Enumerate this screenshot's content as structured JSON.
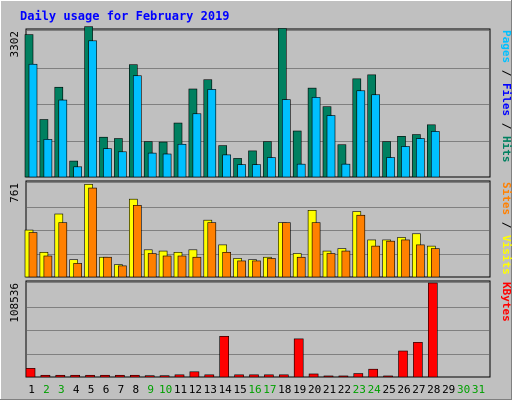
{
  "chart_data": {
    "type": "bar",
    "title": "Daily usage for February 2019",
    "categories": [
      "1",
      "2",
      "3",
      "4",
      "5",
      "6",
      "7",
      "8",
      "9",
      "10",
      "11",
      "12",
      "13",
      "14",
      "15",
      "16",
      "17",
      "18",
      "19",
      "20",
      "21",
      "22",
      "23",
      "24",
      "25",
      "26",
      "27",
      "28",
      "29",
      "30",
      "31"
    ],
    "weekend_days": [
      "2",
      "3",
      "9",
      "10",
      "16",
      "17",
      "23",
      "24",
      "30",
      "31"
    ],
    "panels": [
      {
        "name": "hits_files_pages",
        "ymax_label": "3302",
        "ylim": [
          0,
          3302
        ],
        "right_label": [
          {
            "text": "Pages",
            "color": "#00c0ff"
          },
          {
            "text": " / ",
            "color": "#000000"
          },
          {
            "text": "Files",
            "color": "#0000ff"
          },
          {
            "text": " / ",
            "color": "#000000"
          },
          {
            "text": "Hits",
            "color": "#008060"
          }
        ],
        "series": [
          {
            "name": "Hits",
            "color": "#008060",
            "values": [
              3220,
              1300,
              2030,
              360,
              3400,
              900,
              870,
              2540,
              800,
              790,
              1220,
              1990,
              2200,
              710,
              420,
              590,
              800,
              3360,
              1040,
              2010,
              1590,
              730,
              2220,
              2310,
              800,
              920,
              960,
              1180
            ]
          },
          {
            "name": "Files",
            "color": "#0000ff",
            "values": [
              2550,
              850,
              1740,
              230,
              3080,
              640,
              570,
              2290,
              540,
              520,
              740,
              1430,
              1980,
              500,
              280,
              280,
              440,
              1750,
              290,
              1800,
              1390,
              290,
              1950,
              1860,
              440,
              690,
              870,
              1030
            ]
          },
          {
            "name": "Pages",
            "color": "#00c0ff",
            "values": [
              2550,
              850,
              1740,
              230,
              3080,
              640,
              570,
              2290,
              540,
              520,
              740,
              1430,
              1980,
              500,
              280,
              280,
              440,
              1750,
              290,
              1800,
              1390,
              290,
              1950,
              1860,
              440,
              690,
              870,
              1030
            ]
          }
        ]
      },
      {
        "name": "visits_sites",
        "ymax_label": "761",
        "ylim": [
          0,
          761
        ],
        "right_label": [
          {
            "text": "Sites",
            "color": "#ff8000"
          },
          {
            "text": " / ",
            "color": "#000000"
          },
          {
            "text": "Visits",
            "color": "#ffff00"
          }
        ],
        "series": [
          {
            "name": "Visits",
            "color": "#ffff00",
            "values": [
              380,
              200,
              510,
              140,
              750,
              160,
              100,
              630,
              220,
              210,
              200,
              220,
              460,
              260,
              150,
              140,
              160,
              440,
              190,
              540,
              210,
              230,
              530,
              300,
              300,
              320,
              350,
              250
            ]
          },
          {
            "name": "Sites",
            "color": "#ff8000",
            "values": [
              360,
              170,
              440,
              110,
              720,
              160,
              90,
              580,
              190,
              170,
              170,
              160,
              440,
              200,
              130,
              130,
              150,
              440,
              160,
              440,
              190,
              210,
              500,
              250,
              290,
              300,
              260,
              230
            ]
          }
        ]
      },
      {
        "name": "kbytes",
        "ymax_label": "108536",
        "ylim": [
          0,
          108536
        ],
        "right_label": [
          {
            "text": "KBytes",
            "color": "#ff0000"
          }
        ],
        "series": [
          {
            "name": "KBytes",
            "color": "#ff0000",
            "values": [
              10000,
              2000,
              2000,
              2000,
              2000,
              2000,
              2000,
              2000,
              1500,
              1500,
              2500,
              6000,
              2500,
              47000,
              2500,
              2500,
              2500,
              2500,
              44000,
              3500,
              1200,
              1200,
              4000,
              9000,
              1200,
              30000,
              40000,
              108536
            ]
          }
        ]
      }
    ]
  }
}
